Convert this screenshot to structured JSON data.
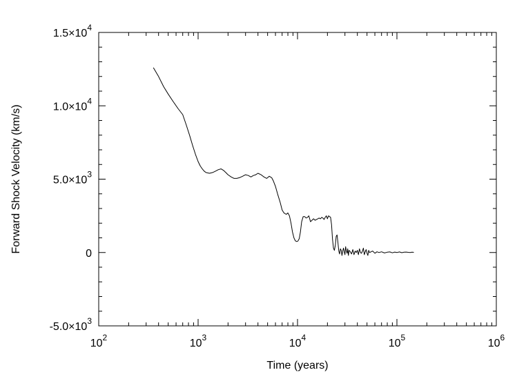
{
  "chart_data": {
    "type": "line",
    "title": "",
    "xlabel": "Time (years)",
    "ylabel": "Forward Shock Velocity (km/s)",
    "xscale": "log",
    "xlim": [
      100,
      1000000
    ],
    "ylim": [
      -5000,
      15000
    ],
    "grid": false,
    "legend": "none",
    "line_color": "#000000",
    "x_ticks": [
      {
        "value": 100,
        "base": "10",
        "exp": "2"
      },
      {
        "value": 1000,
        "base": "10",
        "exp": "3"
      },
      {
        "value": 10000,
        "base": "10",
        "exp": "4"
      },
      {
        "value": 100000,
        "base": "10",
        "exp": "5"
      },
      {
        "value": 1000000,
        "base": "10",
        "exp": "6"
      }
    ],
    "y_ticks": [
      {
        "value": -5000,
        "mant": "-5.0",
        "exp": "3"
      },
      {
        "value": 0,
        "mant": "0",
        "exp": ""
      },
      {
        "value": 5000,
        "mant": "5.0",
        "exp": "3"
      },
      {
        "value": 10000,
        "mant": "1.0",
        "exp": "4"
      },
      {
        "value": 15000,
        "mant": "1.5",
        "exp": "4"
      }
    ],
    "series": [
      {
        "x": [
          355,
          400,
          450,
          500,
          560,
          630,
          700,
          760,
          820,
          880,
          940,
          1000,
          1050,
          1100,
          1150,
          1200,
          1300,
          1400,
          1500,
          1600,
          1700,
          1800,
          1900,
          2000,
          2150,
          2300,
          2450,
          2600,
          2800,
          3000,
          3200,
          3400,
          3600,
          3800,
          4000,
          4300,
          4600,
          4900,
          5200,
          5500,
          5700,
          6000,
          6300,
          6700,
          7000,
          7300,
          7700,
          8000,
          8300,
          8600,
          8900,
          9200,
          9500,
          9800,
          10100,
          10400,
          10700,
          11000,
          11400,
          11800,
          12200,
          12600,
          13000,
          13500,
          14000,
          14500,
          15000,
          15500,
          16000,
          16500,
          17000,
          17500,
          18000,
          18500,
          19000,
          19500,
          20000,
          20500,
          21000,
          21500,
          22000,
          22500,
          23000,
          23500,
          24000,
          24500,
          25000,
          25500,
          26000,
          26500,
          27000,
          27500,
          28000,
          28500,
          29000,
          29500,
          30000,
          30500,
          31000,
          31500,
          32000,
          32500,
          33000,
          34000,
          35000,
          36000,
          37000,
          38000,
          39000,
          40000,
          41000,
          42000,
          43000,
          44000,
          45000,
          46000,
          47000,
          48000,
          49000,
          50000,
          51000,
          52000,
          53000,
          55000,
          57000,
          60000,
          63000,
          66000,
          70000,
          75000,
          80000,
          85000,
          90000,
          95000,
          100000,
          106000,
          112000,
          118000,
          124000,
          130000,
          136000,
          142000,
          148000
        ],
        "y": [
          12600,
          12000,
          11300,
          10800,
          10300,
          9800,
          9400,
          8700,
          8000,
          7300,
          6700,
          6200,
          5900,
          5700,
          5550,
          5450,
          5400,
          5450,
          5550,
          5650,
          5700,
          5600,
          5450,
          5300,
          5150,
          5050,
          5050,
          5100,
          5200,
          5300,
          5250,
          5150,
          5250,
          5300,
          5400,
          5300,
          5150,
          5050,
          5200,
          5100,
          4900,
          4500,
          4000,
          3400,
          2900,
          2700,
          2600,
          2700,
          2500,
          2000,
          1400,
          1000,
          800,
          750,
          780,
          950,
          1400,
          2100,
          2450,
          2450,
          2350,
          2400,
          2500,
          2100,
          2200,
          2300,
          2200,
          2250,
          2300,
          2350,
          2300,
          2400,
          2350,
          2250,
          2400,
          2500,
          2300,
          2500,
          2450,
          2400,
          1900,
          900,
          300,
          150,
          500,
          1100,
          1200,
          700,
          100,
          -100,
          250,
          150,
          -200,
          100,
          300,
          50,
          -150,
          400,
          100,
          -50,
          250,
          -200,
          150,
          50,
          -100,
          200,
          -150,
          100,
          0,
          150,
          -150,
          250,
          0,
          -50,
          100,
          300,
          -150,
          50,
          200,
          -50,
          -200,
          150,
          0,
          50,
          100,
          -50,
          50,
          0,
          50,
          -30,
          20,
          40,
          -20,
          30,
          0,
          40,
          -10,
          20,
          30,
          10,
          0,
          20,
          10
        ]
      }
    ]
  }
}
